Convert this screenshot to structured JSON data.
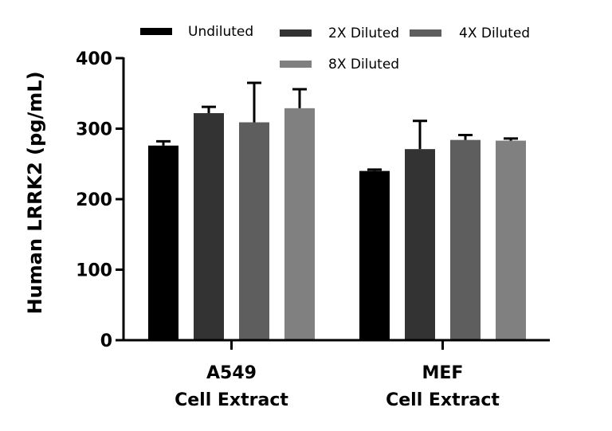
{
  "chart_data": {
    "type": "bar",
    "title": "",
    "ylabel": "Human LRRK2 (pg/mL)",
    "xlabel": "",
    "ylim": [
      0,
      400
    ],
    "yticks": [
      0,
      100,
      200,
      300,
      400
    ],
    "groups": [
      {
        "label_line1": "A549",
        "label_line2": "Cell Extract"
      },
      {
        "label_line1": "MEF",
        "label_line2": "Cell Extract"
      }
    ],
    "series": [
      {
        "name": "Undiluted",
        "color": "#000000",
        "values": [
          276,
          240
        ],
        "errors": [
          6,
          2
        ]
      },
      {
        "name": "2X Diluted",
        "color": "#333333",
        "values": [
          322,
          271
        ],
        "errors": [
          9,
          40
        ]
      },
      {
        "name": "4X Diluted",
        "color": "#5e5e5e",
        "values": [
          309,
          284
        ],
        "errors": [
          56,
          7
        ]
      },
      {
        "name": "8X Diluted",
        "color": "#808080",
        "values": [
          329,
          283
        ],
        "errors": [
          27,
          3
        ]
      }
    ],
    "legend_position": "top"
  }
}
